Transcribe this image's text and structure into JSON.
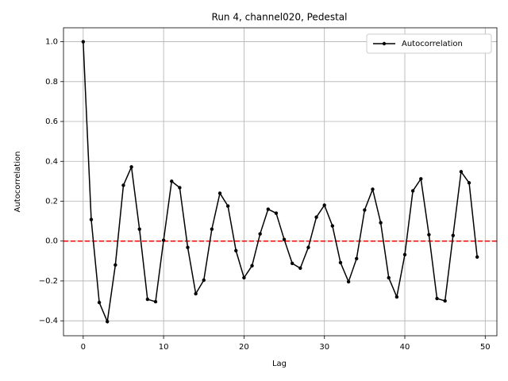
{
  "chart_data": {
    "type": "line",
    "title": "Run 4, channel020, Pedestal",
    "x_label": "Lag",
    "y_label": "Autocorrelation",
    "x": [
      0,
      1,
      2,
      3,
      4,
      5,
      6,
      7,
      8,
      9,
      10,
      11,
      12,
      13,
      14,
      15,
      16,
      17,
      18,
      19,
      20,
      21,
      22,
      23,
      24,
      25,
      26,
      27,
      28,
      29,
      30,
      31,
      32,
      33,
      34,
      35,
      36,
      37,
      38,
      39,
      40,
      41,
      42,
      43,
      44,
      45,
      46,
      47,
      48,
      49
    ],
    "series": [
      {
        "name": "Autocorrelation",
        "color": "#000000",
        "values": [
          1.0,
          0.108,
          -0.308,
          -0.404,
          -0.12,
          0.28,
          0.372,
          0.06,
          -0.292,
          -0.304,
          0.004,
          0.3,
          0.268,
          -0.032,
          -0.264,
          -0.196,
          0.06,
          0.24,
          0.176,
          -0.048,
          -0.184,
          -0.124,
          0.036,
          0.16,
          0.14,
          0.008,
          -0.112,
          -0.136,
          -0.032,
          0.12,
          0.18,
          0.076,
          -0.108,
          -0.204,
          -0.088,
          0.156,
          0.26,
          0.092,
          -0.184,
          -0.28,
          -0.068,
          0.252,
          0.312,
          0.032,
          -0.288,
          -0.3,
          0.028,
          0.348,
          0.292,
          -0.08
        ]
      }
    ],
    "hline": {
      "y": 0,
      "color": "#ff0000"
    },
    "xlim": [
      -2.45,
      51.45
    ],
    "xticks": [
      0,
      10,
      20,
      30,
      40,
      50
    ],
    "ylim": [
      -0.475,
      1.07
    ],
    "yticks": [
      {
        "value": -0.4,
        "label": "−0.4"
      },
      {
        "value": -0.2,
        "label": "−0.2"
      },
      {
        "value": 0,
        "label": "0.0"
      },
      {
        "value": 0.2,
        "label": "0.2"
      },
      {
        "value": 0.4,
        "label": "0.4"
      },
      {
        "value": 0.6,
        "label": "0.6"
      },
      {
        "value": 0.8,
        "label": "0.8"
      },
      {
        "value": 1.0,
        "label": "1.0"
      }
    ],
    "grid": true,
    "legend": "upper right"
  }
}
